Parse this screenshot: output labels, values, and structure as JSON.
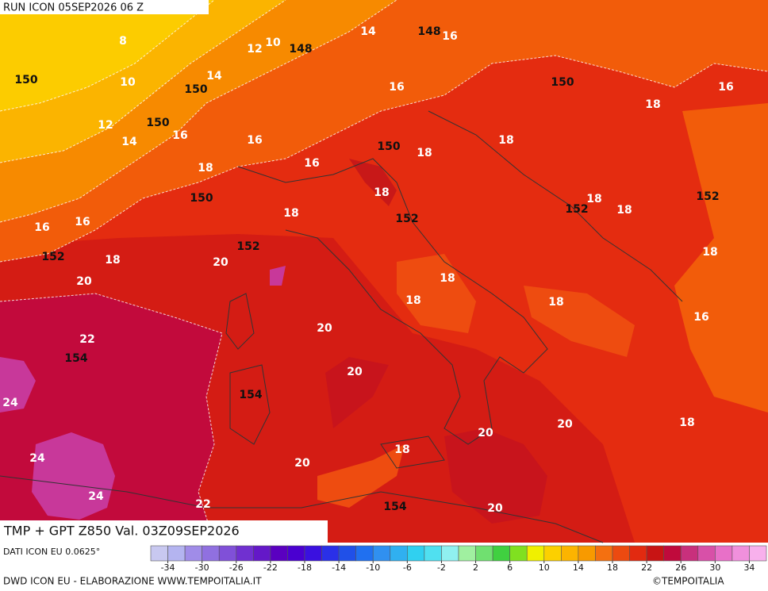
{
  "header": {
    "run": "RUN ICON 05SEP2026 06 Z",
    "product": "TMP + GPT Z850 Val. 03Z09SEP2026"
  },
  "footer": {
    "source": "DATI ICON EU 0.0625°",
    "credit": "DWD ICON EU - ELABORAZIONE WWW.TEMPOITALIA.IT",
    "copyright": "©TEMPOITALIA"
  },
  "map": {
    "temperature_labels": [
      "8",
      "10",
      "12",
      "14",
      "16",
      "10",
      "14",
      "16",
      "16",
      "18",
      "12",
      "14",
      "16",
      "16",
      "16",
      "18",
      "18",
      "18",
      "18",
      "18",
      "18",
      "16",
      "16",
      "18",
      "18",
      "20",
      "18",
      "20",
      "18",
      "18",
      "18",
      "16",
      "20",
      "22",
      "20",
      "24",
      "20",
      "18",
      "20",
      "18",
      "24",
      "20",
      "24",
      "22",
      "20"
    ],
    "geopotential_labels": [
      "148",
      "148",
      "150",
      "150",
      "150",
      "150",
      "150",
      "150",
      "152",
      "152",
      "152",
      "152",
      "152",
      "154",
      "154",
      "154"
    ]
  },
  "colorbar": {
    "range": [
      -36,
      36
    ],
    "ticks": [
      -34,
      -30,
      -26,
      -22,
      -18,
      -14,
      -10,
      -6,
      -2,
      2,
      6,
      10,
      14,
      18,
      22,
      26,
      30,
      34
    ],
    "colors": [
      "#c8c8f0",
      "#b4b4f0",
      "#a08ce8",
      "#9070e0",
      "#8050d8",
      "#7030d0",
      "#6418c8",
      "#5a00c0",
      "#4a00d0",
      "#3a10e0",
      "#2a30e8",
      "#2050e8",
      "#2070f0",
      "#3090f0",
      "#30b0f0",
      "#30d0f0",
      "#50e0f0",
      "#90f0f0",
      "#a0f0a0",
      "#70e070",
      "#40d040",
      "#80e020",
      "#f0f000",
      "#fcd000",
      "#fcb400",
      "#f89a00",
      "#f47010",
      "#ec4a10",
      "#e22a10",
      "#c81414",
      "#c00a3c",
      "#c8307c",
      "#d850a8",
      "#e870c8",
      "#f090dc",
      "#f8b0ec"
    ]
  }
}
